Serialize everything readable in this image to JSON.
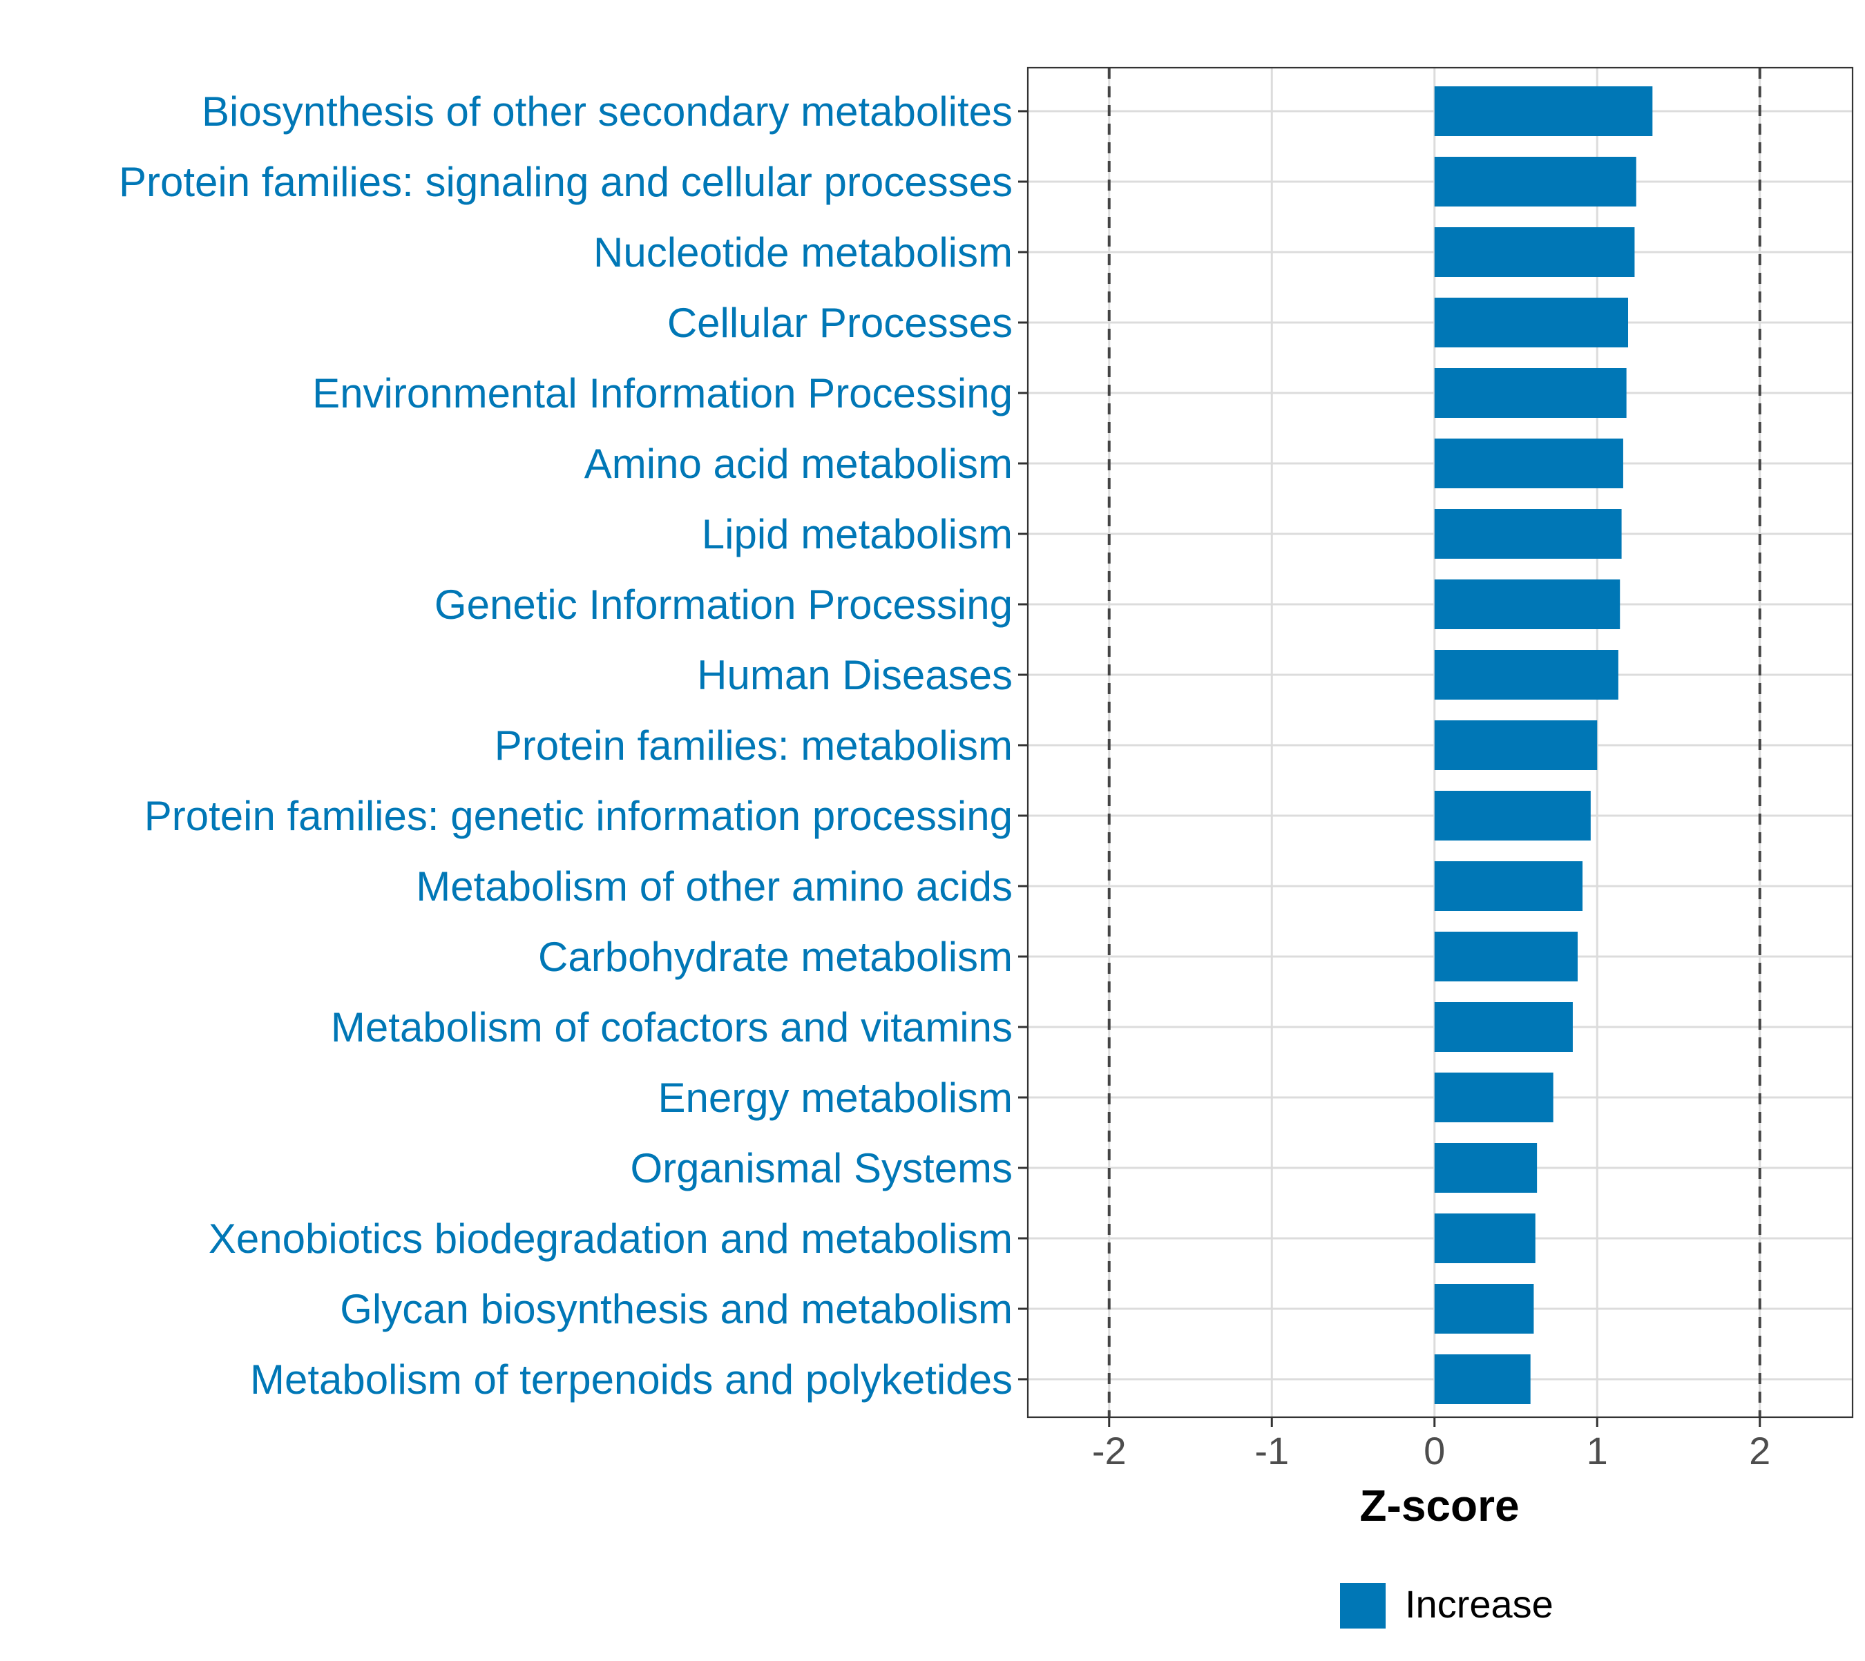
{
  "chart_data": {
    "type": "bar",
    "orientation": "horizontal",
    "categories": [
      "Biosynthesis of other secondary metabolites",
      "Protein families: signaling and cellular processes",
      "Nucleotide metabolism",
      "Cellular Processes",
      "Environmental Information Processing",
      "Amino acid metabolism",
      "Lipid metabolism",
      "Genetic Information Processing",
      "Human Diseases",
      "Protein families: metabolism",
      "Protein families: genetic information processing",
      "Metabolism of other amino acids",
      "Carbohydrate metabolism",
      "Metabolism of cofactors and vitamins",
      "Energy metabolism",
      "Organismal Systems",
      "Xenobiotics biodegradation and metabolism",
      "Glycan biosynthesis and metabolism",
      "Metabolism of terpenoids and polyketides"
    ],
    "series": [
      {
        "name": "Increase",
        "color": "#0077b6",
        "values": [
          1.34,
          1.24,
          1.23,
          1.19,
          1.18,
          1.16,
          1.15,
          1.14,
          1.13,
          1.0,
          0.96,
          0.91,
          0.88,
          0.85,
          0.73,
          0.63,
          0.62,
          0.61,
          0.59
        ]
      }
    ],
    "title": "",
    "xlabel": "Z-score",
    "ylabel": "",
    "xlim": [
      -2.5,
      2.57
    ],
    "xticks": [
      -2,
      -1,
      0,
      1,
      2
    ],
    "xtick_labels": [
      "-2",
      "-1",
      "0",
      "1",
      "2"
    ],
    "reference_lines": [
      -2,
      2
    ],
    "grid": true,
    "legend": {
      "position": "bottom",
      "entries": [
        {
          "label": "Increase",
          "color": "#0077b6"
        }
      ]
    },
    "category_label_color": "#0077b6"
  }
}
